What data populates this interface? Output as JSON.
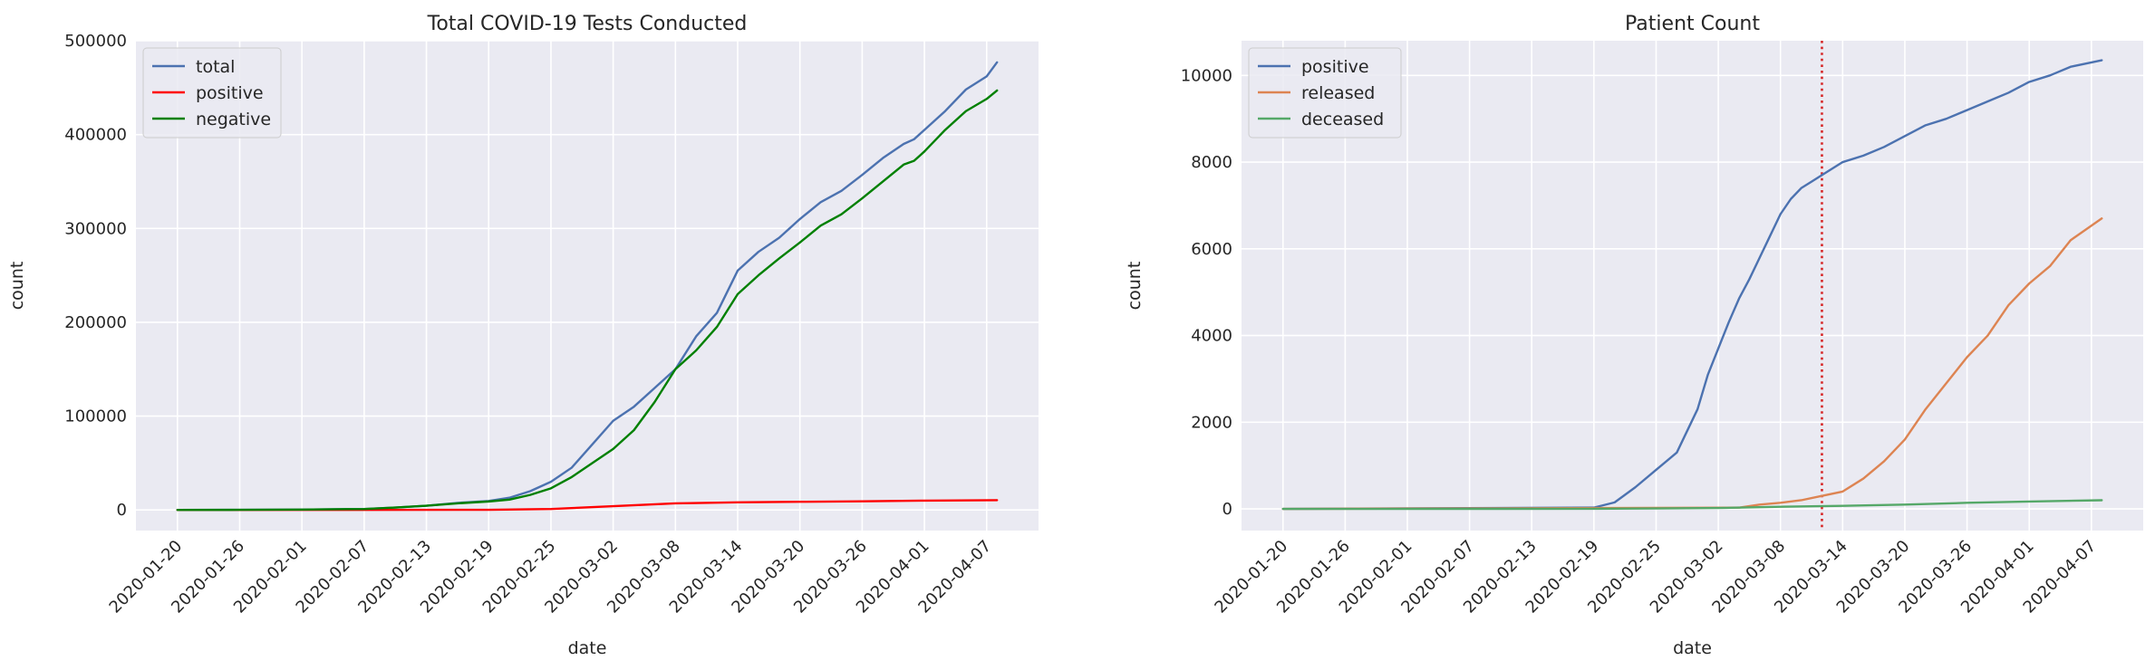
{
  "chart_data": [
    {
      "type": "line",
      "title": "Total COVID-19 Tests Conducted",
      "xlabel": "date",
      "ylabel": "count",
      "x_range": [
        "2020-01-16",
        "2020-04-12"
      ],
      "ylim": [
        -22000,
        500000
      ],
      "yticks": [
        0,
        100000,
        200000,
        300000,
        400000,
        500000
      ],
      "ytick_labels": [
        "0",
        "100000",
        "200000",
        "300000",
        "400000",
        "500000"
      ],
      "xticks": [
        "2020-01-20",
        "2020-01-26",
        "2020-02-01",
        "2020-02-07",
        "2020-02-13",
        "2020-02-19",
        "2020-02-25",
        "2020-03-02",
        "2020-03-08",
        "2020-03-14",
        "2020-03-20",
        "2020-03-26",
        "2020-04-01",
        "2020-04-07"
      ],
      "grid": true,
      "legend_position": "top-left",
      "series": [
        {
          "name": "total",
          "color": "#4c72b0",
          "points": [
            [
              "2020-01-20",
              0
            ],
            [
              "2020-01-26",
              100
            ],
            [
              "2020-02-01",
              400
            ],
            [
              "2020-02-07",
              1000
            ],
            [
              "2020-02-10",
              2500
            ],
            [
              "2020-02-13",
              4500
            ],
            [
              "2020-02-16",
              7500
            ],
            [
              "2020-02-19",
              9500
            ],
            [
              "2020-02-21",
              13000
            ],
            [
              "2020-02-23",
              20000
            ],
            [
              "2020-02-25",
              30000
            ],
            [
              "2020-02-27",
              45000
            ],
            [
              "2020-02-29",
              70000
            ],
            [
              "2020-03-02",
              95000
            ],
            [
              "2020-03-04",
              110000
            ],
            [
              "2020-03-06",
              130000
            ],
            [
              "2020-03-08",
              150000
            ],
            [
              "2020-03-10",
              185000
            ],
            [
              "2020-03-12",
              210000
            ],
            [
              "2020-03-14",
              255000
            ],
            [
              "2020-03-16",
              275000
            ],
            [
              "2020-03-18",
              290000
            ],
            [
              "2020-03-20",
              310000
            ],
            [
              "2020-03-22",
              328000
            ],
            [
              "2020-03-24",
              340000
            ],
            [
              "2020-03-26",
              357000
            ],
            [
              "2020-03-28",
              375000
            ],
            [
              "2020-03-30",
              390000
            ],
            [
              "2020-03-31",
              395000
            ],
            [
              "2020-04-01",
              405000
            ],
            [
              "2020-04-03",
              425000
            ],
            [
              "2020-04-05",
              448000
            ],
            [
              "2020-04-07",
              462000
            ],
            [
              "2020-04-08",
              477000
            ]
          ]
        },
        {
          "name": "positive",
          "color": "#ff0000",
          "points": [
            [
              "2020-01-20",
              0
            ],
            [
              "2020-02-19",
              100
            ],
            [
              "2020-02-25",
              1000
            ],
            [
              "2020-03-02",
              4000
            ],
            [
              "2020-03-08",
              7000
            ],
            [
              "2020-03-14",
              8100
            ],
            [
              "2020-03-20",
              8650
            ],
            [
              "2020-03-26",
              9200
            ],
            [
              "2020-04-01",
              9900
            ],
            [
              "2020-04-08",
              10400
            ]
          ]
        },
        {
          "name": "negative",
          "color": "#008000",
          "points": [
            [
              "2020-01-20",
              0
            ],
            [
              "2020-01-26",
              100
            ],
            [
              "2020-02-01",
              400
            ],
            [
              "2020-02-07",
              1000
            ],
            [
              "2020-02-10",
              2500
            ],
            [
              "2020-02-13",
              4500
            ],
            [
              "2020-02-16",
              7000
            ],
            [
              "2020-02-19",
              9000
            ],
            [
              "2020-02-21",
              11000
            ],
            [
              "2020-02-23",
              16000
            ],
            [
              "2020-02-25",
              23000
            ],
            [
              "2020-02-27",
              35000
            ],
            [
              "2020-02-29",
              50000
            ],
            [
              "2020-03-02",
              65000
            ],
            [
              "2020-03-04",
              85000
            ],
            [
              "2020-03-06",
              115000
            ],
            [
              "2020-03-08",
              150000
            ],
            [
              "2020-03-10",
              170000
            ],
            [
              "2020-03-12",
              195000
            ],
            [
              "2020-03-14",
              230000
            ],
            [
              "2020-03-16",
              250000
            ],
            [
              "2020-03-18",
              268000
            ],
            [
              "2020-03-20",
              285000
            ],
            [
              "2020-03-22",
              303000
            ],
            [
              "2020-03-24",
              315000
            ],
            [
              "2020-03-26",
              332000
            ],
            [
              "2020-03-28",
              350000
            ],
            [
              "2020-03-30",
              368000
            ],
            [
              "2020-03-31",
              372000
            ],
            [
              "2020-04-01",
              382000
            ],
            [
              "2020-04-03",
              405000
            ],
            [
              "2020-04-05",
              425000
            ],
            [
              "2020-04-07",
              438000
            ],
            [
              "2020-04-08",
              447000
            ]
          ]
        }
      ]
    },
    {
      "type": "line",
      "title": "Patient Count",
      "xlabel": "date",
      "ylabel": "count",
      "x_range": [
        "2020-01-16",
        "2020-04-12"
      ],
      "ylim": [
        -500,
        10800
      ],
      "yticks": [
        0,
        2000,
        4000,
        6000,
        8000,
        10000
      ],
      "ytick_labels": [
        "0",
        "2000",
        "4000",
        "6000",
        "8000",
        "10000"
      ],
      "xticks": [
        "2020-01-20",
        "2020-01-26",
        "2020-02-01",
        "2020-02-07",
        "2020-02-13",
        "2020-02-19",
        "2020-02-25",
        "2020-03-02",
        "2020-03-08",
        "2020-03-14",
        "2020-03-20",
        "2020-03-26",
        "2020-04-01",
        "2020-04-07"
      ],
      "grid": true,
      "legend_position": "top-left",
      "vline": {
        "x": "2020-03-12",
        "color": "#d62728",
        "style": "dotted"
      },
      "series": [
        {
          "name": "positive",
          "color": "#4c72b0",
          "points": [
            [
              "2020-01-20",
              0
            ],
            [
              "2020-02-19",
              30
            ],
            [
              "2020-02-21",
              150
            ],
            [
              "2020-02-23",
              500
            ],
            [
              "2020-02-25",
              900
            ],
            [
              "2020-02-27",
              1300
            ],
            [
              "2020-02-29",
              2300
            ],
            [
              "2020-03-01",
              3100
            ],
            [
              "2020-03-02",
              3700
            ],
            [
              "2020-03-03",
              4300
            ],
            [
              "2020-03-04",
              4850
            ],
            [
              "2020-03-05",
              5300
            ],
            [
              "2020-03-06",
              5800
            ],
            [
              "2020-03-07",
              6300
            ],
            [
              "2020-03-08",
              6800
            ],
            [
              "2020-03-09",
              7150
            ],
            [
              "2020-03-10",
              7400
            ],
            [
              "2020-03-11",
              7550
            ],
            [
              "2020-03-12",
              7700
            ],
            [
              "2020-03-14",
              8000
            ],
            [
              "2020-03-16",
              8150
            ],
            [
              "2020-03-18",
              8350
            ],
            [
              "2020-03-20",
              8600
            ],
            [
              "2020-03-22",
              8850
            ],
            [
              "2020-03-24",
              9000
            ],
            [
              "2020-03-26",
              9200
            ],
            [
              "2020-03-28",
              9400
            ],
            [
              "2020-03-30",
              9600
            ],
            [
              "2020-04-01",
              9850
            ],
            [
              "2020-04-03",
              10000
            ],
            [
              "2020-04-05",
              10200
            ],
            [
              "2020-04-08",
              10350
            ]
          ]
        },
        {
          "name": "released",
          "color": "#dd8452",
          "points": [
            [
              "2020-01-20",
              0
            ],
            [
              "2020-03-04",
              30
            ],
            [
              "2020-03-06",
              100
            ],
            [
              "2020-03-08",
              140
            ],
            [
              "2020-03-10",
              200
            ],
            [
              "2020-03-12",
              300
            ],
            [
              "2020-03-14",
              400
            ],
            [
              "2020-03-16",
              700
            ],
            [
              "2020-03-18",
              1100
            ],
            [
              "2020-03-20",
              1600
            ],
            [
              "2020-03-22",
              2300
            ],
            [
              "2020-03-24",
              2900
            ],
            [
              "2020-03-26",
              3500
            ],
            [
              "2020-03-28",
              4000
            ],
            [
              "2020-03-30",
              4700
            ],
            [
              "2020-04-01",
              5200
            ],
            [
              "2020-04-03",
              5600
            ],
            [
              "2020-04-05",
              6200
            ],
            [
              "2020-04-08",
              6700
            ]
          ]
        },
        {
          "name": "deceased",
          "color": "#55a868",
          "points": [
            [
              "2020-01-20",
              0
            ],
            [
              "2020-02-19",
              2
            ],
            [
              "2020-02-25",
              10
            ],
            [
              "2020-03-02",
              20
            ],
            [
              "2020-03-08",
              50
            ],
            [
              "2020-03-14",
              70
            ],
            [
              "2020-03-20",
              100
            ],
            [
              "2020-03-26",
              140
            ],
            [
              "2020-04-01",
              170
            ],
            [
              "2020-04-08",
              200
            ]
          ]
        }
      ]
    }
  ]
}
